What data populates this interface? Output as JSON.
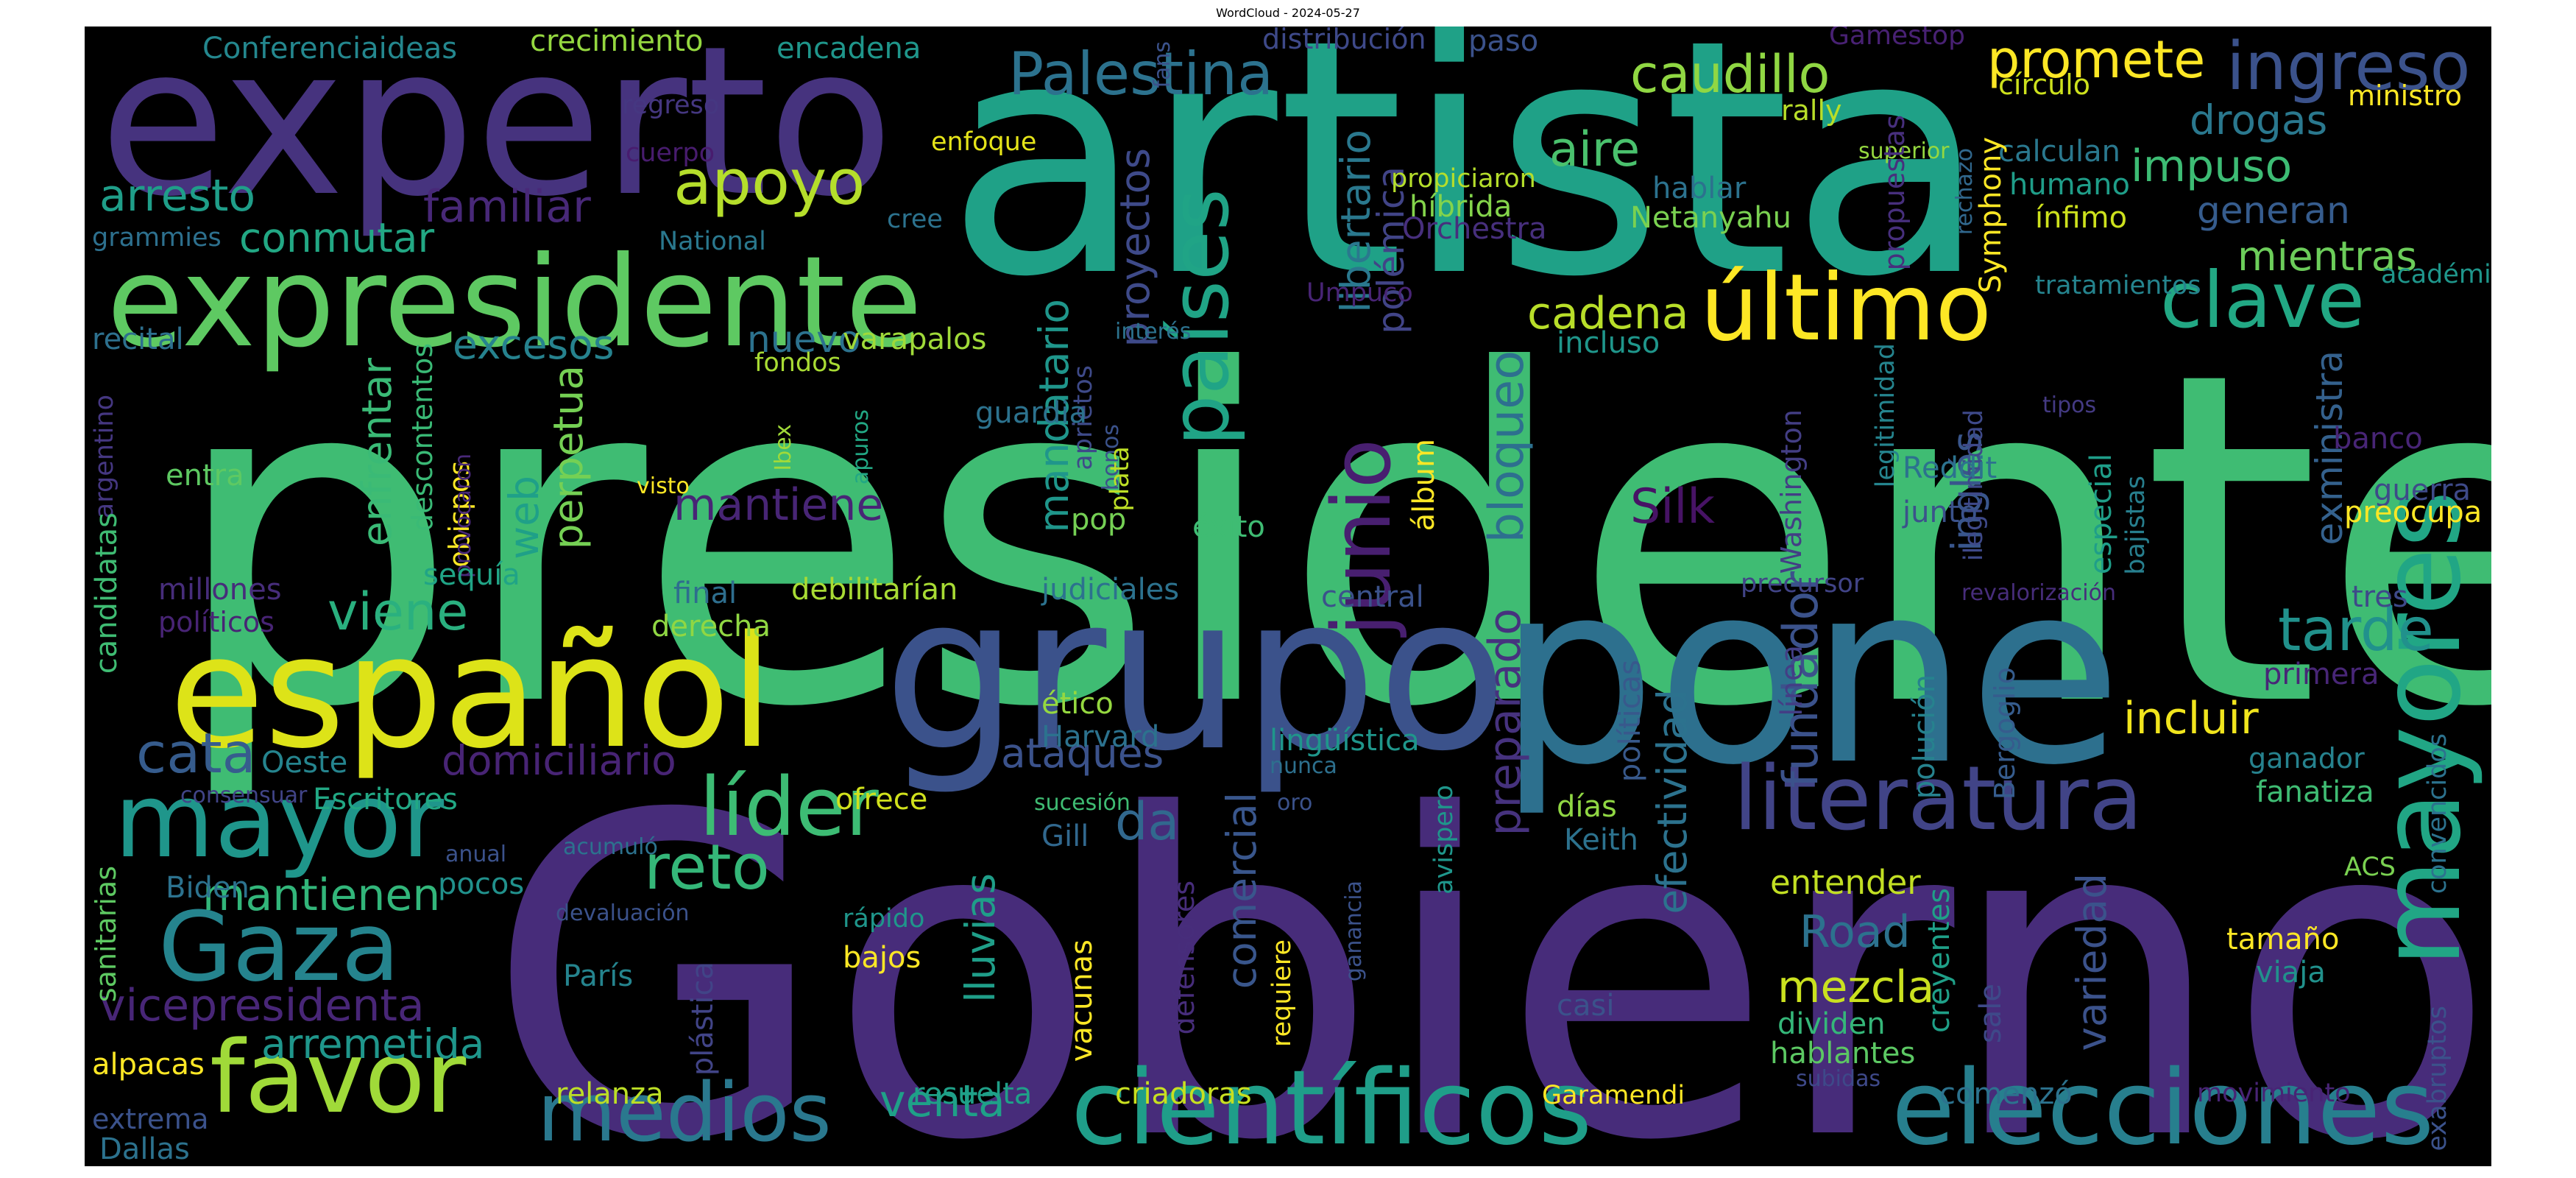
{
  "title": "WordCloud - 2024-05-27",
  "words": [
    {
      "text": "presidente",
      "color": "#3fbc73"
    },
    {
      "text": "Gobierno",
      "color": "#472c7a"
    },
    {
      "text": "artista",
      "color": "#1fa187"
    },
    {
      "text": "experto",
      "color": "#46337e"
    },
    {
      "text": "pone",
      "color": "#2d708e"
    },
    {
      "text": "grupo",
      "color": "#3b528b"
    },
    {
      "text": "español",
      "color": "#dde318"
    },
    {
      "text": "expresidente",
      "color": "#5ec962"
    },
    {
      "text": "científicos",
      "color": "#1f9e89"
    },
    {
      "text": "elecciones",
      "color": "#277f8e"
    },
    {
      "text": "mayores",
      "color": "#21a685"
    },
    {
      "text": "literatura",
      "color": "#414487"
    },
    {
      "text": "mayor",
      "color": "#1f968b"
    },
    {
      "text": "Gaza",
      "color": "#25848e"
    },
    {
      "text": "favor",
      "color": "#a0da39"
    },
    {
      "text": "medios",
      "color": "#2a788e"
    },
    {
      "text": "último",
      "color": "#fde725"
    },
    {
      "text": "líder",
      "color": "#3dbc74"
    },
    {
      "text": "países",
      "color": "#20a486"
    },
    {
      "text": "junio",
      "color": "#481f70"
    },
    {
      "text": "clave",
      "color": "#22a884"
    },
    {
      "text": "Palestina",
      "color": "#2c728e"
    },
    {
      "text": "ingreso",
      "color": "#3b528b"
    },
    {
      "text": "apoyo",
      "color": "#b5de2b"
    },
    {
      "text": "reto",
      "color": "#35b779"
    },
    {
      "text": "cata",
      "color": "#365c8d"
    },
    {
      "text": "tarde",
      "color": "#21918c"
    },
    {
      "text": "caudillo",
      "color": "#90d743"
    },
    {
      "text": "promete",
      "color": "#fde725"
    },
    {
      "text": "arresto",
      "color": "#1f9e89"
    },
    {
      "text": "familiar",
      "color": "#482878"
    },
    {
      "text": "conmutar",
      "color": "#22a884"
    },
    {
      "text": "viene",
      "color": "#2ab07f"
    },
    {
      "text": "excesos",
      "color": "#26828e"
    },
    {
      "text": "aire",
      "color": "#4ac16d"
    },
    {
      "text": "cadena",
      "color": "#b8de29"
    },
    {
      "text": "mantiene",
      "color": "#482576"
    },
    {
      "text": "domiciliario",
      "color": "#482475"
    },
    {
      "text": "ataques",
      "color": "#3b528b"
    },
    {
      "text": "da",
      "color": "#31688e"
    },
    {
      "text": "fundador",
      "color": "#3b528b"
    },
    {
      "text": "preparado",
      "color": "#46327e"
    },
    {
      "text": "bloqueo",
      "color": "#2d708e"
    },
    {
      "text": "incluir",
      "color": "#f1e51d"
    },
    {
      "text": "impuso",
      "color": "#3dbc74"
    },
    {
      "text": "drogas",
      "color": "#2a788e"
    },
    {
      "text": "generan",
      "color": "#365c8d"
    },
    {
      "text": "mientras",
      "color": "#6ccd5a"
    },
    {
      "text": "mantienen",
      "color": "#32b67a"
    },
    {
      "text": "vicepresidenta",
      "color": "#482677"
    },
    {
      "text": "arremetida",
      "color": "#1f968b"
    },
    {
      "text": "venta",
      "color": "#1fa088"
    },
    {
      "text": "mezcla",
      "color": "#cae11f"
    },
    {
      "text": "Road",
      "color": "#2c728e"
    },
    {
      "text": "lluvias",
      "color": "#1f9e89"
    },
    {
      "text": "comercial",
      "color": "#39568c"
    },
    {
      "text": "Silk",
      "color": "#471365"
    },
    {
      "text": "web",
      "color": "#1fa088"
    },
    {
      "text": "perpetua",
      "color": "#75d054"
    },
    {
      "text": "enfrentar",
      "color": "#3aba76"
    },
    {
      "text": "mandatario",
      "color": "#1f968b"
    },
    {
      "text": "proyectos",
      "color": "#3e4a89"
    },
    {
      "text": "libertario",
      "color": "#2a788e"
    },
    {
      "text": "polémica",
      "color": "#414487"
    },
    {
      "text": "nuevo",
      "color": "#2c728e"
    },
    {
      "text": "efectividad",
      "color": "#2c728e"
    },
    {
      "text": "exministra",
      "color": "#34618d"
    },
    {
      "text": "inglés",
      "color": "#39568c"
    },
    {
      "text": "variedad",
      "color": "#3b528b"
    },
    {
      "text": "entender",
      "color": "#c2df23"
    },
    {
      "text": "hablantes",
      "color": "#5cc863"
    },
    {
      "text": "dividen",
      "color": "#35b779"
    },
    {
      "text": "tamaño",
      "color": "#fde725"
    },
    {
      "text": "viaja",
      "color": "#21918c"
    },
    {
      "text": "Conferenciaideas",
      "color": "#24878e"
    },
    {
      "text": "crecimiento",
      "color": "#95d840"
    },
    {
      "text": "encadena",
      "color": "#1f968b"
    },
    {
      "text": "distribución",
      "color": "#3e4989"
    },
    {
      "text": "paso",
      "color": "#3b528b"
    },
    {
      "text": "Gamestop",
      "color": "#482173"
    },
    {
      "text": "círculo",
      "color": "#cde11d"
    },
    {
      "text": "ministro",
      "color": "#fde725"
    },
    {
      "text": "regreso",
      "color": "#453781"
    },
    {
      "text": "cuerpo",
      "color": "#481c6e"
    },
    {
      "text": "enfoque",
      "color": "#e5e419"
    },
    {
      "text": "rally",
      "color": "#b8de29"
    },
    {
      "text": "superior",
      "color": "#95d840"
    },
    {
      "text": "calculan",
      "color": "#2a788e"
    },
    {
      "text": "humano",
      "color": "#1f9e89"
    },
    {
      "text": "cree",
      "color": "#2c728e"
    },
    {
      "text": "grammies",
      "color": "#2d708e"
    },
    {
      "text": "National",
      "color": "#2a788e"
    },
    {
      "text": "fans",
      "color": "#3b528b"
    },
    {
      "text": "propiciaron",
      "color": "#b5de2b"
    },
    {
      "text": "híbrida",
      "color": "#84d44b"
    },
    {
      "text": "Orchestra",
      "color": "#472f7d"
    },
    {
      "text": "hablar",
      "color": "#2c728e"
    },
    {
      "text": "Netanyahu",
      "color": "#7ad151"
    },
    {
      "text": "propuestas",
      "color": "#472f7d"
    },
    {
      "text": "rechazo",
      "color": "#31688e"
    },
    {
      "text": "Symphony",
      "color": "#fde725"
    },
    {
      "text": "ínfimo",
      "color": "#cde11d"
    },
    {
      "text": "tratamientos",
      "color": "#25848e"
    },
    {
      "text": "académicos",
      "color": "#1f968b"
    },
    {
      "text": "Umpuco",
      "color": "#482475"
    },
    {
      "text": "interés",
      "color": "#2c728e"
    },
    {
      "text": "fondos",
      "color": "#a8db34"
    },
    {
      "text": "varapalos",
      "color": "#a0da39"
    },
    {
      "text": "incluso",
      "color": "#1f968b"
    },
    {
      "text": "recital",
      "color": "#2d708e"
    },
    {
      "text": "argentino",
      "color": "#453781"
    },
    {
      "text": "candidatas",
      "color": "#3fbc73"
    },
    {
      "text": "entra",
      "color": "#5ec962"
    },
    {
      "text": "obispos",
      "color": "#fde725"
    },
    {
      "text": "descontentos",
      "color": "#3aba76"
    },
    {
      "text": "provocaron",
      "color": "#482878"
    },
    {
      "text": "visto",
      "color": "#fde725"
    },
    {
      "text": "Ibex",
      "color": "#a0da39"
    },
    {
      "text": "apuros",
      "color": "#22a884"
    },
    {
      "text": "aprietos",
      "color": "#3e4a89"
    },
    {
      "text": "bonos",
      "color": "#3b528b"
    },
    {
      "text": "plata",
      "color": "#bddf26"
    },
    {
      "text": "guardia",
      "color": "#2c728e"
    },
    {
      "text": "pop",
      "color": "#75d054"
    },
    {
      "text": "éxito",
      "color": "#3fbc73"
    },
    {
      "text": "álbum",
      "color": "#fde725"
    },
    {
      "text": "legitimidad",
      "color": "#25848e"
    },
    {
      "text": "ilegitimidad",
      "color": "#3e4989"
    },
    {
      "text": "Washington",
      "color": "#433e85"
    },
    {
      "text": "Reddit",
      "color": "#2c728e"
    },
    {
      "text": "junto",
      "color": "#3b528b"
    },
    {
      "text": "especial",
      "color": "#1f9e89"
    },
    {
      "text": "bajistas",
      "color": "#277f8e"
    },
    {
      "text": "tipos",
      "color": "#443a83"
    },
    {
      "text": "banco",
      "color": "#482576"
    },
    {
      "text": "guerra",
      "color": "#3e4a89"
    },
    {
      "text": "preocupa",
      "color": "#fde725"
    },
    {
      "text": "sequía",
      "color": "#20a486"
    },
    {
      "text": "millones",
      "color": "#472d7b"
    },
    {
      "text": "políticos",
      "color": "#482475"
    },
    {
      "text": "final",
      "color": "#2e6e8e"
    },
    {
      "text": "derecha",
      "color": "#90d743"
    },
    {
      "text": "debilitarían",
      "color": "#a8db34"
    },
    {
      "text": "judiciales",
      "color": "#2c728e"
    },
    {
      "text": "central",
      "color": "#3b528b"
    },
    {
      "text": "precursor",
      "color": "#414487"
    },
    {
      "text": "revalorización",
      "color": "#472d7b"
    },
    {
      "text": "tres",
      "color": "#3e4989"
    },
    {
      "text": "primera",
      "color": "#482677"
    },
    {
      "text": "ganador",
      "color": "#26828e"
    },
    {
      "text": "fanatiza",
      "color": "#3fbc73"
    },
    {
      "text": "Oeste",
      "color": "#25848e"
    },
    {
      "text": "ético",
      "color": "#95d840"
    },
    {
      "text": "Harvard",
      "color": "#2c728e"
    },
    {
      "text": "lingüística",
      "color": "#1f968b"
    },
    {
      "text": "nunca",
      "color": "#2d708e"
    },
    {
      "text": "polución",
      "color": "#26828e"
    },
    {
      "text": "Bergoglio",
      "color": "#365c8d"
    },
    {
      "text": "línea",
      "color": "#433e85"
    },
    {
      "text": "políticas",
      "color": "#38598c"
    },
    {
      "text": "consensuar",
      "color": "#414487"
    },
    {
      "text": "Escritores",
      "color": "#22a884"
    },
    {
      "text": "ofrece",
      "color": "#d0e11c"
    },
    {
      "text": "sucesión",
      "color": "#3fbc73"
    },
    {
      "text": "oro",
      "color": "#3b528b"
    },
    {
      "text": "días",
      "color": "#90d743"
    },
    {
      "text": "Keith",
      "color": "#2c728e"
    },
    {
      "text": "sanitarias",
      "color": "#5ec962"
    },
    {
      "text": "acumuló",
      "color": "#2c728e"
    },
    {
      "text": "anual",
      "color": "#3b528b"
    },
    {
      "text": "Biden",
      "color": "#2c728e"
    },
    {
      "text": "pocos",
      "color": "#21918c"
    },
    {
      "text": "Gill",
      "color": "#31688e"
    },
    {
      "text": "defensores",
      "color": "#472d7b"
    },
    {
      "text": "ganancia",
      "color": "#3b528b"
    },
    {
      "text": "avispero",
      "color": "#1f968b"
    },
    {
      "text": "devaluación",
      "color": "#3b528b"
    },
    {
      "text": "rápido",
      "color": "#1f968b"
    },
    {
      "text": "bajos",
      "color": "#fde725"
    },
    {
      "text": "vacunas",
      "color": "#fde725"
    },
    {
      "text": "requiere",
      "color": "#fde725"
    },
    {
      "text": "plástica",
      "color": "#414487"
    },
    {
      "text": "París",
      "color": "#25848e"
    },
    {
      "text": "casi",
      "color": "#3b528b"
    },
    {
      "text": "creyentes",
      "color": "#1fa088"
    },
    {
      "text": "sale",
      "color": "#3e4989"
    },
    {
      "text": "convencidos",
      "color": "#2c728e"
    },
    {
      "text": "ACS",
      "color": "#7ad151"
    },
    {
      "text": "exabruptos",
      "color": "#3b528b"
    },
    {
      "text": "alpacas",
      "color": "#fde725"
    },
    {
      "text": "extrema",
      "color": "#3b528b"
    },
    {
      "text": "Dallas",
      "color": "#2c728e"
    },
    {
      "text": "relanza",
      "color": "#bddf26"
    },
    {
      "text": "resuelta",
      "color": "#1fa088"
    },
    {
      "text": "criadoras",
      "color": "#c8e020"
    },
    {
      "text": "Garamendi",
      "color": "#fde725"
    },
    {
      "text": "subidas",
      "color": "#3e4989"
    },
    {
      "text": "comenzó",
      "color": "#2c728e"
    },
    {
      "text": "movimiento",
      "color": "#482475"
    }
  ]
}
